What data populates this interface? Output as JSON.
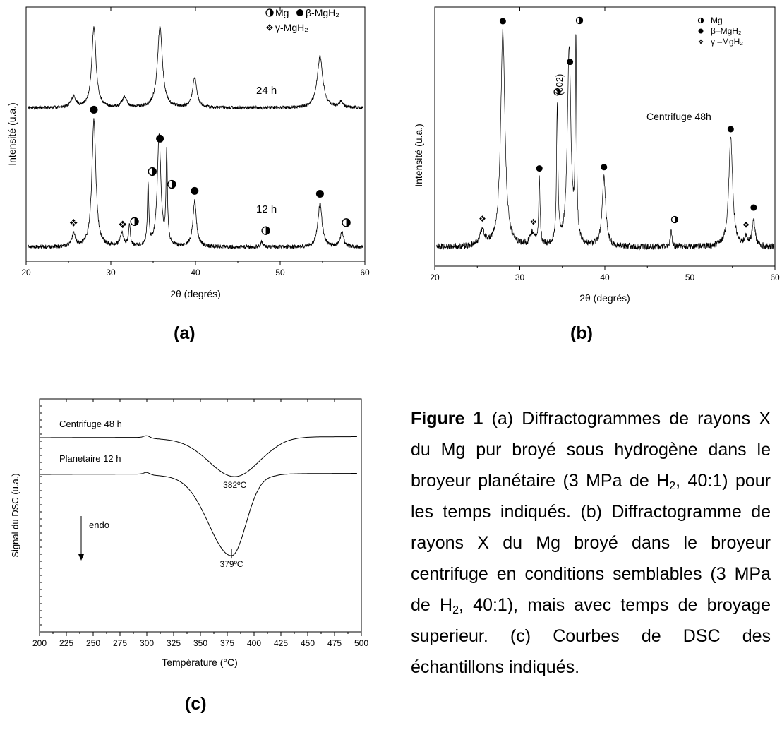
{
  "chart_data": [
    {
      "type": "line",
      "panel_label": "(a)",
      "xlabel": "2θ (degrés)",
      "ylabel": "Intensité (u.a.)",
      "xlim": [
        20,
        60
      ],
      "xticks": [
        "20",
        "30",
        "40",
        "50",
        "60"
      ],
      "legend_position": "top-right",
      "legend": [
        {
          "symbol": "open-circle",
          "label": "Mg"
        },
        {
          "symbol": "filled-circle",
          "label": "β-MgH₂"
        },
        {
          "symbol": "diamond-cluster",
          "label": "γ-MgH₂"
        }
      ],
      "series": [
        {
          "name": "24 h",
          "peaks": [
            {
              "x": 25.6,
              "h": 0.12,
              "w": 0.35
            },
            {
              "x": 28.0,
              "h": 0.92,
              "w": 0.3
            },
            {
              "x": 31.6,
              "h": 0.11,
              "w": 0.35
            },
            {
              "x": 35.8,
              "h": 0.92,
              "w": 0.35
            },
            {
              "x": 39.9,
              "h": 0.34,
              "w": 0.3
            },
            {
              "x": 54.7,
              "h": 0.58,
              "w": 0.4
            },
            {
              "x": 57.2,
              "h": 0.06,
              "w": 0.3
            }
          ]
        },
        {
          "name": "12 h",
          "peaks": [
            {
              "x": 25.6,
              "h": 0.1,
              "w": 0.25
            },
            {
              "x": 28.0,
              "h": 1.0,
              "w": 0.28
            },
            {
              "x": 31.3,
              "h": 0.1,
              "w": 0.25
            },
            {
              "x": 32.2,
              "h": 0.18,
              "w": 0.12
            },
            {
              "x": 34.4,
              "h": 0.48,
              "w": 0.1
            },
            {
              "x": 35.7,
              "h": 0.88,
              "w": 0.25
            },
            {
              "x": 36.6,
              "h": 0.72,
              "w": 0.1
            },
            {
              "x": 39.9,
              "h": 0.36,
              "w": 0.25
            },
            {
              "x": 47.8,
              "h": 0.05,
              "w": 0.12
            },
            {
              "x": 54.7,
              "h": 0.34,
              "w": 0.3
            },
            {
              "x": 57.3,
              "h": 0.11,
              "w": 0.25
            }
          ],
          "markers": [
            {
              "x": 28.0,
              "symbol": "filled-circle"
            },
            {
              "x": 35.8,
              "symbol": "filled-circle"
            },
            {
              "x": 36.7,
              "symbol": "open-circle"
            },
            {
              "x": 34.4,
              "symbol": "open-circle"
            },
            {
              "x": 32.3,
              "symbol": "open-circle"
            },
            {
              "x": 25.6,
              "symbol": "diamond-cluster"
            },
            {
              "x": 31.4,
              "symbol": "diamond-cluster"
            },
            {
              "x": 39.9,
              "symbol": "filled-circle"
            },
            {
              "x": 47.8,
              "symbol": "open-circle"
            },
            {
              "x": 54.7,
              "symbol": "filled-circle"
            },
            {
              "x": 57.3,
              "symbol": "open-circle"
            }
          ]
        }
      ]
    },
    {
      "type": "line",
      "panel_label": "(b)",
      "xlabel": "2θ (degrés)",
      "ylabel": "Intensité (u.a.)",
      "xlim": [
        20,
        60
      ],
      "xticks": [
        "20",
        "30",
        "40",
        "50",
        "60"
      ],
      "legend_position": "top-right",
      "legend": [
        {
          "symbol": "open-circle",
          "label": "Mg"
        },
        {
          "symbol": "filled-circle",
          "label": "β–MgH₂"
        },
        {
          "symbol": "diamond-cluster",
          "label": "γ –MgH₂"
        }
      ],
      "annotations": [
        "Centrifuge 48h",
        "(002)"
      ],
      "series": [
        {
          "name": "Centrifuge 48h",
          "peaks": [
            {
              "x": 25.6,
              "h": 0.07,
              "w": 0.35
            },
            {
              "x": 28.0,
              "h": 1.0,
              "w": 0.3
            },
            {
              "x": 31.5,
              "h": 0.06,
              "w": 0.3
            },
            {
              "x": 32.3,
              "h": 0.3,
              "w": 0.1
            },
            {
              "x": 34.4,
              "h": 0.64,
              "w": 0.1
            },
            {
              "x": 35.8,
              "h": 0.92,
              "w": 0.25
            },
            {
              "x": 36.6,
              "h": 0.92,
              "w": 0.09
            },
            {
              "x": 39.9,
              "h": 0.32,
              "w": 0.25
            },
            {
              "x": 47.8,
              "h": 0.08,
              "w": 0.12
            },
            {
              "x": 54.8,
              "h": 0.5,
              "w": 0.28
            },
            {
              "x": 56.6,
              "h": 0.04,
              "w": 0.2
            },
            {
              "x": 57.5,
              "h": 0.13,
              "w": 0.2
            }
          ],
          "markers": [
            {
              "x": 28.0,
              "symbol": "filled-circle"
            },
            {
              "x": 32.3,
              "symbol": "filled-circle"
            },
            {
              "x": 34.4,
              "symbol": "open-circle"
            },
            {
              "x": 35.9,
              "symbol": "filled-circle"
            },
            {
              "x": 36.6,
              "symbol": "open-circle"
            },
            {
              "x": 39.9,
              "symbol": "filled-circle"
            },
            {
              "x": 47.8,
              "symbol": "open-circle"
            },
            {
              "x": 54.8,
              "symbol": "filled-circle"
            },
            {
              "x": 57.5,
              "symbol": "filled-circle"
            },
            {
              "x": 25.6,
              "symbol": "diamond-cluster"
            },
            {
              "x": 31.6,
              "symbol": "diamond-cluster"
            },
            {
              "x": 56.6,
              "symbol": "diamond-cluster"
            }
          ]
        }
      ]
    },
    {
      "type": "line",
      "panel_label": "(c)",
      "xlabel": "Température (°C)",
      "ylabel": "Signal du DSC (u.a.)",
      "xlim": [
        200,
        500
      ],
      "xticks": [
        "200",
        "225",
        "250",
        "275",
        "300",
        "325",
        "350",
        "375",
        "400",
        "425",
        "450",
        "475",
        "500"
      ],
      "annotations": [
        "endo"
      ],
      "series": [
        {
          "name": "Centrifuge 48 h",
          "onset": 300,
          "min_temp": 382,
          "min_label": "382ºC",
          "depth": 0.27
        },
        {
          "name": "Planetaire 12 h",
          "onset": 300,
          "min_temp": 379,
          "min_label": "379ºC",
          "depth": 0.57
        }
      ]
    }
  ],
  "caption": {
    "figure": "Figure 1",
    "text_a": " (a) Diffractogrammes de rayons X du Mg pur broyé sous hydrogène dans le broyeur planétaire (3 MPa de H",
    "sub1": "2",
    "text_b": ", 40:1) pour les temps indiqués. (b) Diffractogramme de rayons X du Mg broyé dans le broyeur centrifuge en conditions semblables (3 MPa de H",
    "sub2": "2",
    "text_c": ", 40:1), mais avec temps de broyage superieur. (c) Courbes de DSC des échantillons indiqués."
  }
}
